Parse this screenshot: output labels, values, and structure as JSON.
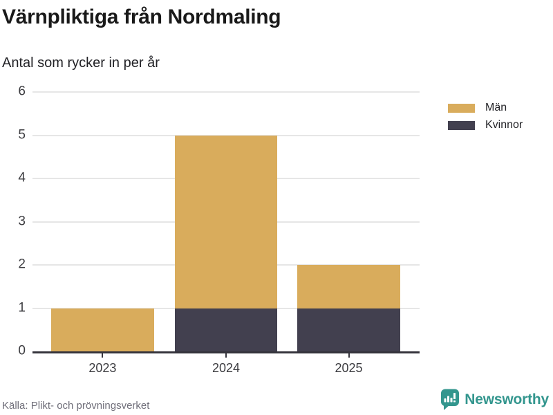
{
  "header": {
    "title": "Värnpliktiga från Nordmaling",
    "subtitle": "Antal som rycker in per år"
  },
  "chart_data": {
    "type": "bar",
    "stacked": true,
    "title": "Värnpliktiga från Nordmaling",
    "subtitle": "Antal som rycker in per år",
    "categories": [
      "2023",
      "2024",
      "2025"
    ],
    "series": [
      {
        "name": "Män",
        "color": "#d9ac5c",
        "values": [
          1,
          4,
          1
        ]
      },
      {
        "name": "Kvinnor",
        "color": "#42404f",
        "values": [
          0,
          1,
          1
        ]
      }
    ],
    "stack_order_bottom_to_top": [
      "Kvinnor",
      "Män"
    ],
    "totals": [
      1,
      5,
      2
    ],
    "xlabel": "",
    "ylabel": "",
    "ylim": [
      0,
      6
    ],
    "yticks": [
      0,
      1,
      2,
      3,
      4,
      5,
      6
    ],
    "grid": true,
    "legend_position": "right"
  },
  "footer": {
    "source": "Källa: Plikt- och prövningsverket",
    "brand": "Newsworthy",
    "brand_color": "#33968e"
  }
}
